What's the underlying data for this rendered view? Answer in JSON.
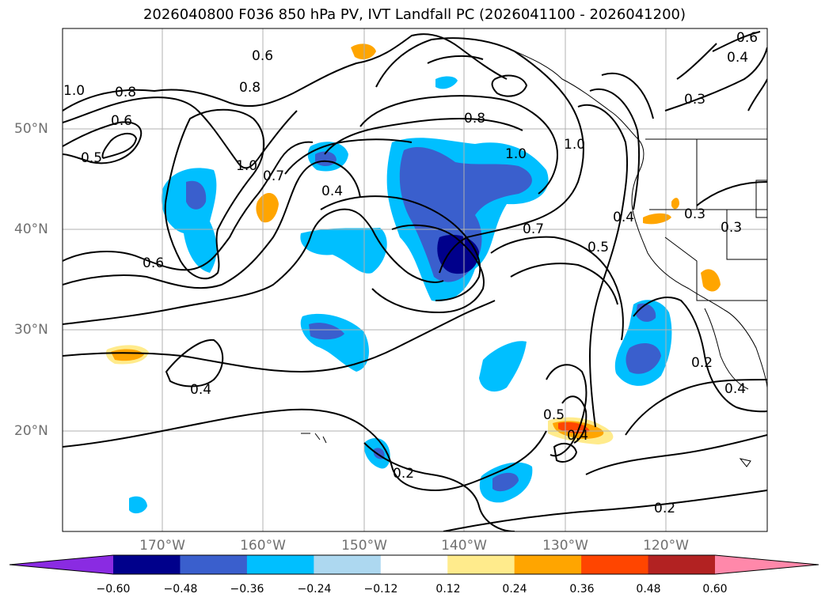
{
  "title": "2026040800 F036 850 hPa PV, IVT Landfall PC (2026041100 - 2026041200)",
  "lat_labels": [
    "50°N",
    "40°N",
    "30°N",
    "20°N"
  ],
  "lon_labels": [
    "170°W",
    "160°W",
    "150°W",
    "140°W",
    "130°W",
    "120°W"
  ],
  "colorbar": {
    "ticks": [
      "−0.60",
      "−0.48",
      "−0.36",
      "−0.24",
      "−0.12",
      "0.12",
      "0.24",
      "0.36",
      "0.48",
      "0.60"
    ],
    "colors": [
      "#8a2be2",
      "#00008b",
      "#3a5fcd",
      "#00bfff",
      "#add8f0",
      "#ffffff",
      "#ffeb8c",
      "#ffa500",
      "#ff4500",
      "#b22222",
      "#ff88aa"
    ]
  },
  "contour_labels": [
    "0.6",
    "0.8",
    "0.8",
    "1.0",
    "0.6",
    "0.5",
    "1.0",
    "0.7",
    "0.4",
    "0.8",
    "1.0",
    "1.0",
    "0.6",
    "0.6",
    "0.3",
    "0.4",
    "0.7",
    "0.5",
    "0.4",
    "0.3",
    "0.3",
    "0.4",
    "0.2",
    "0.4",
    "0.5",
    "0.4",
    "0.2",
    "0.2"
  ]
}
